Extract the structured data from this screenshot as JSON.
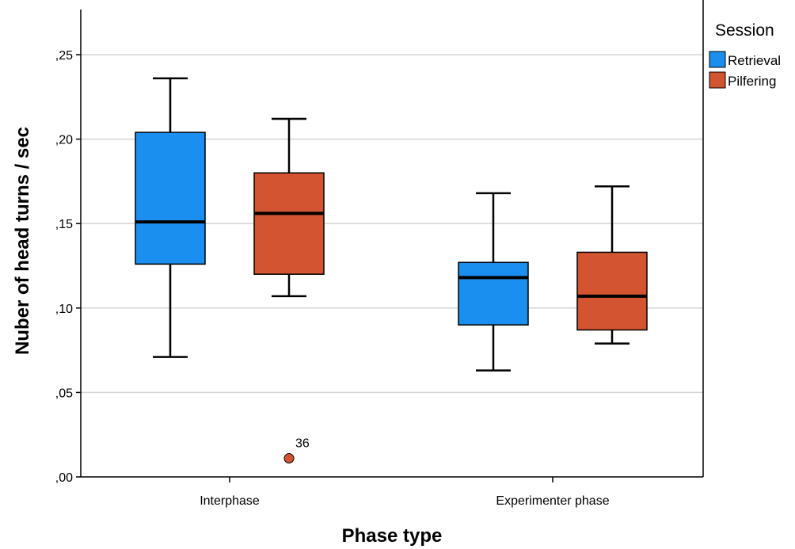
{
  "chart_data": {
    "type": "boxplot",
    "xlabel": "Phase type",
    "ylabel": "Nuber of head turns / sec",
    "ylim": [
      0,
      0.275
    ],
    "yticks": [
      0,
      0.05,
      0.1,
      0.15,
      0.2,
      0.25
    ],
    "ytick_labels": [
      ",00",
      ",05",
      ",10",
      ",15",
      ",20",
      ",25"
    ],
    "categories": [
      "Interphase",
      "Experimenter phase"
    ],
    "grid": "horizontal",
    "legend": {
      "title": "Session",
      "position": "right"
    },
    "series": [
      {
        "name": "Retrieval",
        "color": "#1a8ff0",
        "boxes": [
          {
            "min": 0.071,
            "q1": 0.126,
            "median": 0.151,
            "q3": 0.204,
            "max": 0.236,
            "outliers": []
          },
          {
            "min": 0.063,
            "q1": 0.09,
            "median": 0.118,
            "q3": 0.127,
            "max": 0.168,
            "outliers": []
          }
        ]
      },
      {
        "name": "Pilfering",
        "color": "#d25431",
        "boxes": [
          {
            "min": 0.107,
            "q1": 0.12,
            "median": 0.156,
            "q3": 0.18,
            "max": 0.212,
            "outliers": [
              {
                "value": 0.011,
                "label": "36"
              }
            ]
          },
          {
            "min": 0.079,
            "q1": 0.087,
            "median": 0.107,
            "q3": 0.133,
            "max": 0.172,
            "outliers": []
          }
        ]
      }
    ]
  }
}
